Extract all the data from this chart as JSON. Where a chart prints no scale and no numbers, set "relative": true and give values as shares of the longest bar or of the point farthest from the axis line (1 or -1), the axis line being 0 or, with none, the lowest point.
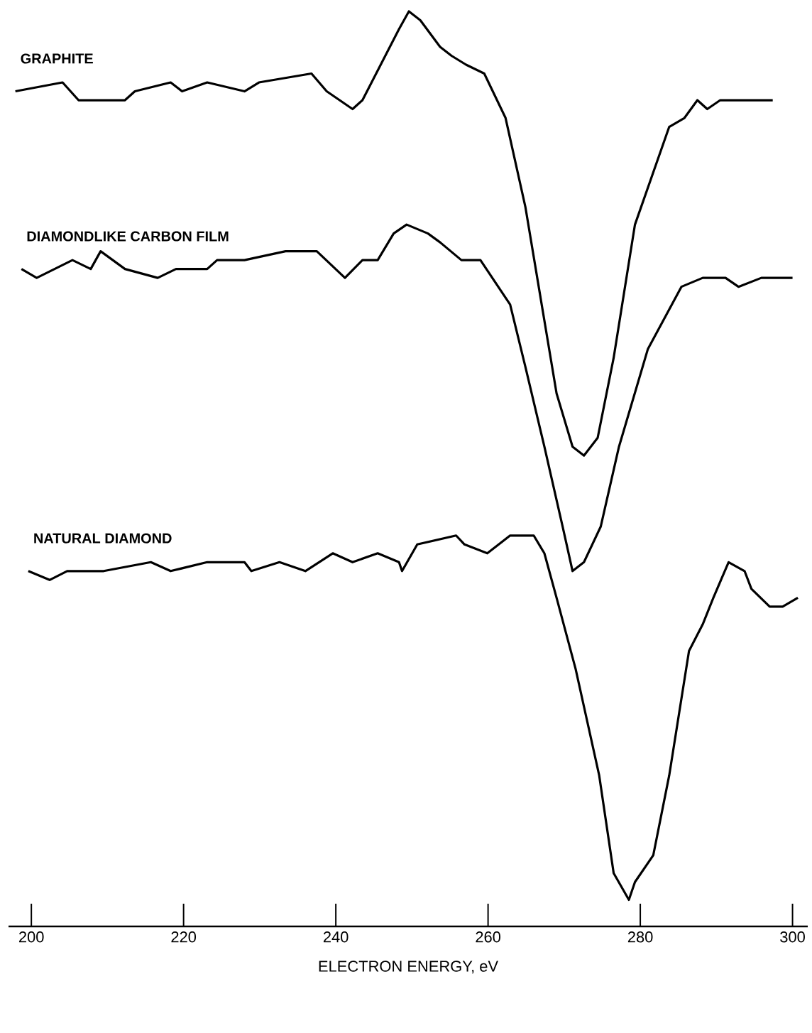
{
  "chart_data": {
    "type": "line",
    "relative": true,
    "xlabel": "ELECTRON ENERGY, eV",
    "xlim": [
      197,
      302
    ],
    "xticks": [
      200,
      220,
      240,
      260,
      280,
      300
    ],
    "tick_labels": "x",
    "grid": false,
    "legend": false,
    "line_style": "solid",
    "series": [
      {
        "name": "GRAPHITE",
        "color": "#000000",
        "x": [
          197.9,
          204.1,
          206.2,
          212.3,
          213.6,
          218.3,
          219.8,
          223.1,
          228.0,
          229.9,
          236.8,
          238.8,
          242.2,
          243.5,
          248.3,
          249.6,
          251.1,
          253.7,
          255.2,
          257.1,
          259.5,
          262.3,
          264.9,
          269.0,
          271.1,
          272.6,
          274.4,
          276.5,
          279.3,
          283.8,
          285.8,
          287.5,
          288.8,
          290.5,
          292.0,
          297.4
        ],
        "values": [
          0.91,
          0.92,
          0.9,
          0.9,
          0.91,
          0.92,
          0.91,
          0.92,
          0.91,
          0.92,
          0.93,
          0.91,
          0.89,
          0.9,
          0.98,
          1.0,
          0.99,
          0.96,
          0.95,
          0.94,
          0.93,
          0.88,
          0.78,
          0.57,
          0.51,
          0.5,
          0.52,
          0.61,
          0.76,
          0.87,
          0.88,
          0.9,
          0.89,
          0.9,
          0.9,
          0.9
        ]
      },
      {
        "name": "DIAMONDLIKE CARBON FILM",
        "color": "#000000",
        "x": [
          198.7,
          200.7,
          205.4,
          207.8,
          209.1,
          212.3,
          216.6,
          219.0,
          223.1,
          224.4,
          228.0,
          233.4,
          237.5,
          241.2,
          243.5,
          245.5,
          247.6,
          249.3,
          252.1,
          253.7,
          256.5,
          259.0,
          262.9,
          264.9,
          267.4,
          269.8,
          271.1,
          272.6,
          274.8,
          277.2,
          281.0,
          285.4,
          288.2,
          291.2,
          292.9,
          295.9,
          297.4,
          300.0
        ],
        "values": [
          0.71,
          0.7,
          0.72,
          0.71,
          0.73,
          0.71,
          0.7,
          0.71,
          0.71,
          0.72,
          0.72,
          0.73,
          0.73,
          0.7,
          0.72,
          0.72,
          0.75,
          0.76,
          0.75,
          0.74,
          0.72,
          0.72,
          0.67,
          0.6,
          0.51,
          0.42,
          0.37,
          0.38,
          0.42,
          0.51,
          0.62,
          0.69,
          0.7,
          0.7,
          0.69,
          0.7,
          0.7,
          0.7
        ]
      },
      {
        "name": "NATURAL DIAMOND",
        "color": "#000000",
        "x": [
          199.6,
          202.4,
          204.7,
          209.5,
          215.7,
          218.3,
          223.1,
          228.0,
          228.9,
          232.6,
          236.0,
          239.6,
          242.2,
          245.5,
          248.3,
          248.7,
          250.7,
          255.8,
          256.9,
          259.9,
          262.9,
          266.0,
          267.4,
          269.0,
          271.5,
          274.6,
          276.5,
          278.5,
          279.3,
          281.7,
          283.8,
          286.4,
          288.2,
          289.6,
          291.6,
          293.7,
          294.6,
          297.0,
          298.7,
          300.7
        ],
        "values": [
          0.37,
          0.36,
          0.37,
          0.37,
          0.38,
          0.37,
          0.38,
          0.38,
          0.37,
          0.38,
          0.37,
          0.39,
          0.38,
          0.39,
          0.38,
          0.37,
          0.4,
          0.41,
          0.4,
          0.39,
          0.41,
          0.41,
          0.39,
          0.34,
          0.26,
          0.14,
          0.03,
          0.0,
          0.02,
          0.05,
          0.14,
          0.28,
          0.31,
          0.34,
          0.38,
          0.37,
          0.35,
          0.33,
          0.33,
          0.34
        ]
      }
    ]
  }
}
